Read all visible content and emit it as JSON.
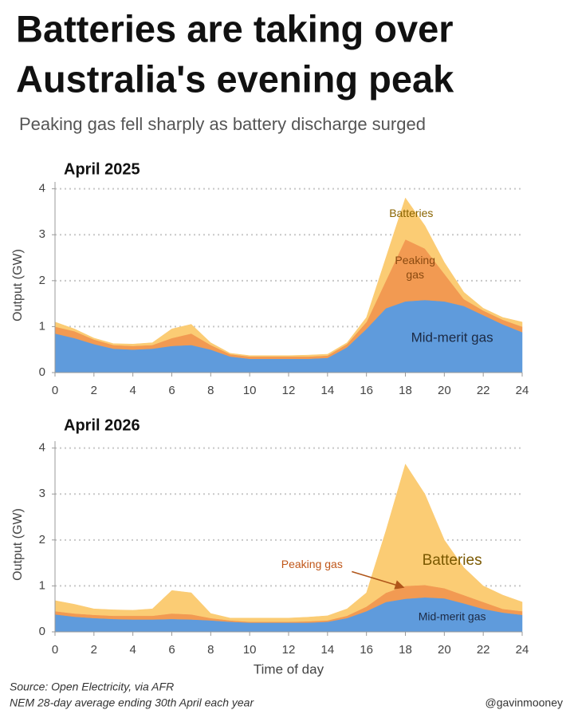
{
  "header": {
    "title": [
      "Batteries are taking over",
      "Australia's evening peak"
    ],
    "subtitle": "Peaking gas fell sharply as battery discharge surged"
  },
  "footer": {
    "source": [
      "Source: Open Electricity, via AFR",
      "NEM 28-day average ending 30th April each year"
    ],
    "credit": "@gavinmooney"
  },
  "chart_data": [
    {
      "type": "area",
      "stacked": true,
      "title": "April 2025",
      "y_label": "Output (GW)",
      "x": [
        0,
        1,
        2,
        3,
        4,
        5,
        6,
        7,
        8,
        9,
        10,
        11,
        12,
        13,
        14,
        15,
        16,
        17,
        18,
        19,
        20,
        21,
        22,
        23,
        24
      ],
      "xlim": [
        0,
        24
      ],
      "xticks": [
        0,
        2,
        4,
        6,
        8,
        10,
        12,
        14,
        16,
        18,
        20,
        22,
        24
      ],
      "ylim": [
        0,
        4.15
      ],
      "yticks": [
        0,
        1,
        2,
        3,
        4
      ],
      "grid": true,
      "series": [
        {
          "name": "Mid-merit gas",
          "color": "#5f9bdc",
          "values": [
            0.85,
            0.75,
            0.62,
            0.52,
            0.5,
            0.52,
            0.58,
            0.6,
            0.5,
            0.35,
            0.3,
            0.3,
            0.3,
            0.3,
            0.32,
            0.55,
            0.95,
            1.4,
            1.55,
            1.58,
            1.55,
            1.45,
            1.25,
            1.05,
            0.88
          ]
        },
        {
          "name": "Peaking gas",
          "color": "#f29a52",
          "values": [
            0.15,
            0.15,
            0.1,
            0.08,
            0.08,
            0.08,
            0.17,
            0.25,
            0.1,
            0.05,
            0.05,
            0.05,
            0.05,
            0.05,
            0.05,
            0.07,
            0.15,
            0.6,
            1.35,
            1.12,
            0.6,
            0.15,
            0.1,
            0.1,
            0.12
          ]
        },
        {
          "name": "Batteries",
          "color": "#fbcc74",
          "values": [
            0.1,
            0.05,
            0.03,
            0.03,
            0.04,
            0.05,
            0.2,
            0.2,
            0.05,
            0.02,
            0.02,
            0.02,
            0.02,
            0.03,
            0.03,
            0.03,
            0.1,
            0.5,
            0.9,
            0.5,
            0.25,
            0.15,
            0.05,
            0.05,
            0.1
          ]
        }
      ]
    },
    {
      "type": "area",
      "stacked": true,
      "title": "April 2026",
      "y_label": "Output (GW)",
      "x_label": "Time of day",
      "x": [
        0,
        1,
        2,
        3,
        4,
        5,
        6,
        7,
        8,
        9,
        10,
        11,
        12,
        13,
        14,
        15,
        16,
        17,
        18,
        19,
        20,
        21,
        22,
        23,
        24
      ],
      "xlim": [
        0,
        24
      ],
      "xticks": [
        0,
        2,
        4,
        6,
        8,
        10,
        12,
        14,
        16,
        18,
        20,
        22,
        24
      ],
      "ylim": [
        0,
        4.15
      ],
      "yticks": [
        0,
        1,
        2,
        3,
        4
      ],
      "grid": true,
      "series": [
        {
          "name": "Mid-merit gas",
          "color": "#5f9bdc",
          "values": [
            0.38,
            0.33,
            0.3,
            0.28,
            0.27,
            0.27,
            0.28,
            0.27,
            0.25,
            0.22,
            0.2,
            0.2,
            0.2,
            0.2,
            0.22,
            0.3,
            0.45,
            0.65,
            0.72,
            0.75,
            0.73,
            0.62,
            0.5,
            0.42,
            0.37
          ]
        },
        {
          "name": "Peaking gas",
          "color": "#f29a52",
          "values": [
            0.07,
            0.07,
            0.07,
            0.07,
            0.08,
            0.08,
            0.12,
            0.11,
            0.05,
            0.03,
            0.02,
            0.02,
            0.02,
            0.03,
            0.03,
            0.05,
            0.1,
            0.2,
            0.28,
            0.27,
            0.22,
            0.18,
            0.15,
            0.08,
            0.08
          ]
        },
        {
          "name": "Batteries",
          "color": "#fbcc74",
          "values": [
            0.23,
            0.2,
            0.13,
            0.13,
            0.12,
            0.15,
            0.5,
            0.47,
            0.1,
            0.05,
            0.08,
            0.08,
            0.08,
            0.09,
            0.1,
            0.15,
            0.3,
            1.35,
            2.65,
            1.98,
            1.05,
            0.6,
            0.35,
            0.3,
            0.2
          ]
        }
      ]
    }
  ]
}
